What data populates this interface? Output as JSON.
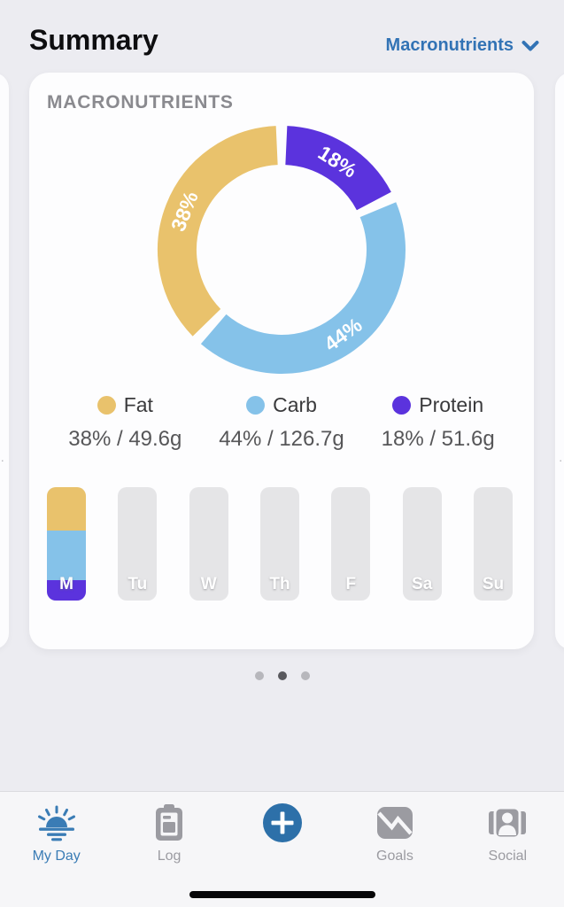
{
  "header": {
    "title": "Summary",
    "view_selector": {
      "label": "Macronutrients"
    }
  },
  "card": {
    "title": "MACRONUTRIENTS",
    "chart_data": {
      "type": "pie",
      "donut": true,
      "title": "MACRONUTRIENTS",
      "start_angle_deg": 0,
      "direction": "clockwise",
      "labels": [
        "Protein",
        "Carb",
        "Fat"
      ],
      "values": [
        18,
        44,
        38
      ],
      "unit": "%",
      "grams": [
        "51.6g",
        "126.7g",
        "49.6g"
      ],
      "colors": [
        "#5B33DD",
        "#85C2E9",
        "#E9C26C"
      ],
      "segment_labels": [
        "18%",
        "44%",
        "38%"
      ],
      "legend_position": "below"
    },
    "legend": [
      {
        "name": "Fat",
        "value": "38% / 49.6g",
        "color": "#E9C26C"
      },
      {
        "name": "Carb",
        "value": "44% / 126.7g",
        "color": "#85C2E9"
      },
      {
        "name": "Protein",
        "value": "18% / 51.6g",
        "color": "#5B33DD"
      }
    ],
    "week": {
      "days": [
        {
          "label": "M",
          "stacks": [
            {
              "name": "Fat",
              "color": "#E9C26C",
              "percent": 38
            },
            {
              "name": "Carb",
              "color": "#85C2E9",
              "percent": 44
            },
            {
              "name": "Protein",
              "color": "#5B33DD",
              "percent": 18
            }
          ]
        },
        {
          "label": "Tu"
        },
        {
          "label": "W"
        },
        {
          "label": "Th"
        },
        {
          "label": "F"
        },
        {
          "label": "Sa"
        },
        {
          "label": "Su"
        }
      ]
    }
  },
  "carousel": {
    "page_count": 3,
    "active_page": 1,
    "side_hint": "· ·"
  },
  "tabbar": {
    "items": [
      {
        "label": "My Day",
        "active": true
      },
      {
        "label": "Log",
        "active": false
      },
      {
        "label": "",
        "active": false
      },
      {
        "label": "Goals",
        "active": false
      },
      {
        "label": "Social",
        "active": false
      }
    ],
    "accent": "#3A7CB5",
    "plus_color": "#2D70A9"
  },
  "colors": {
    "background": "#ECECF1",
    "card": "#FDFDFE",
    "link_blue": "#3273B5",
    "empty_bar": "#E5E5E7"
  }
}
